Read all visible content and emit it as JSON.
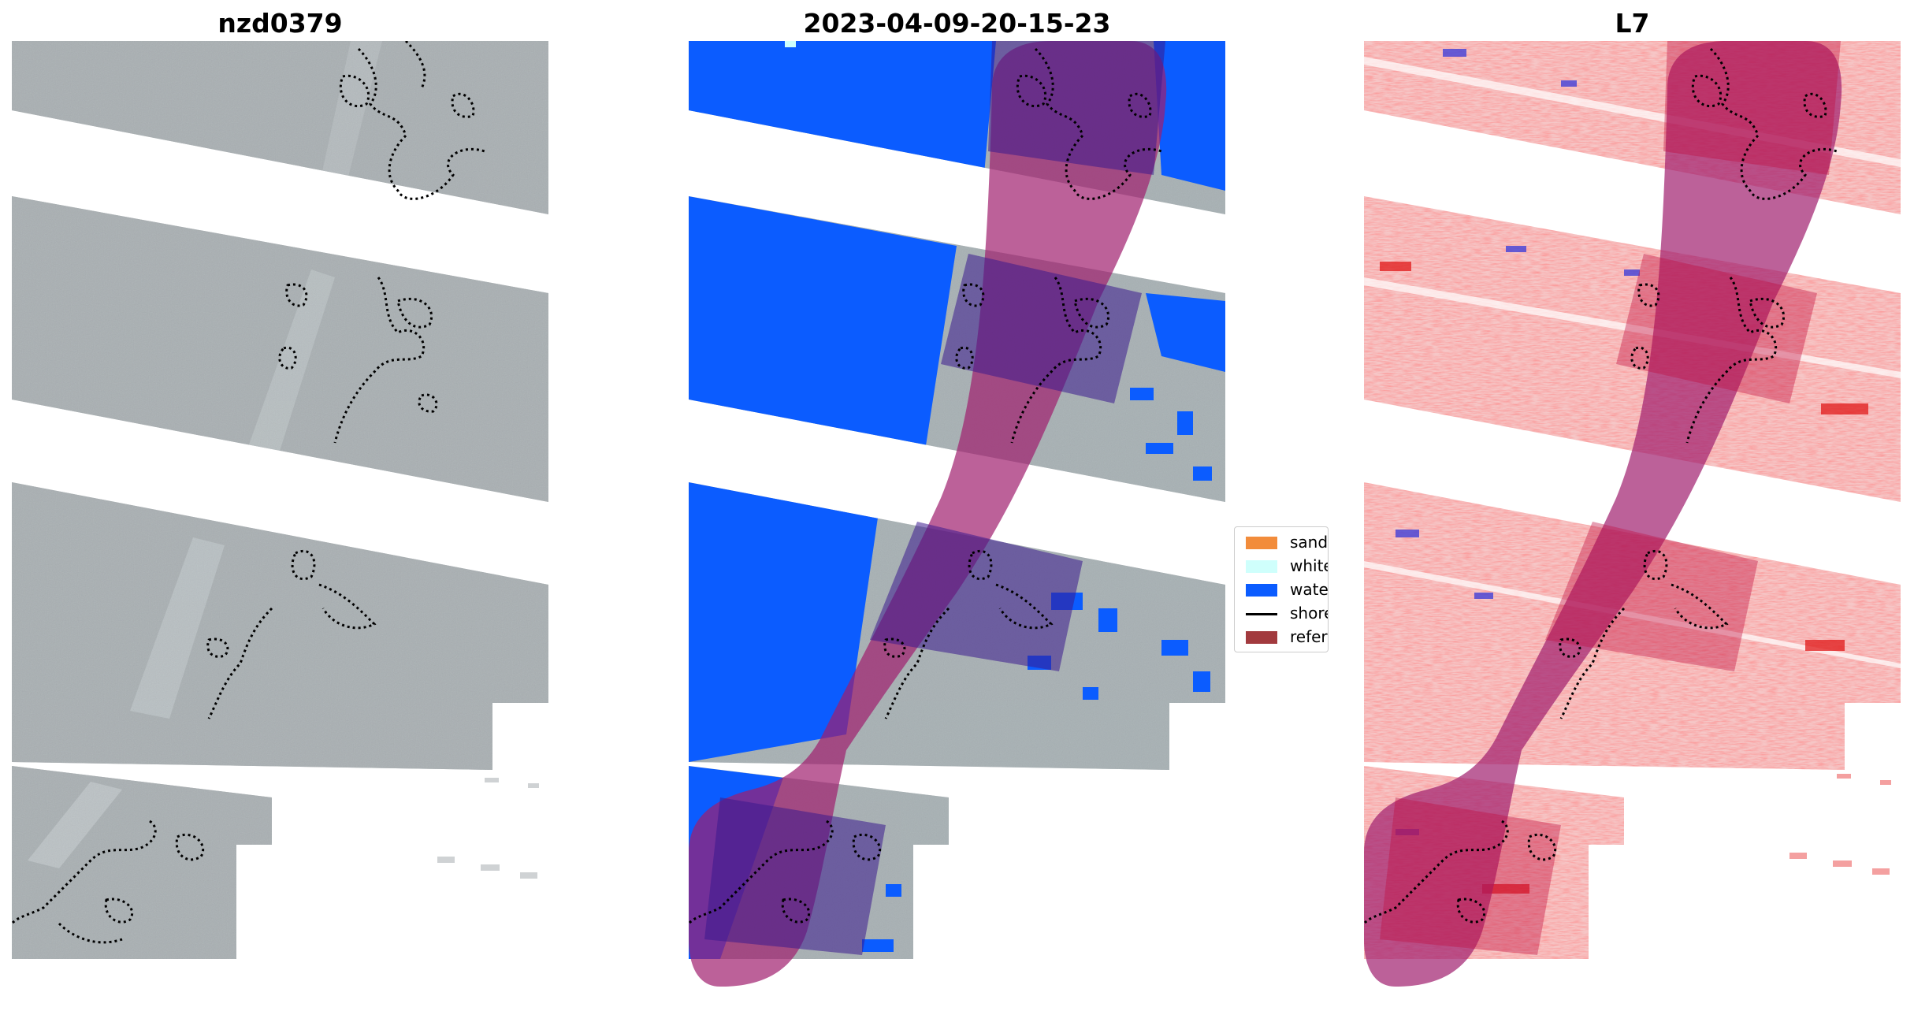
{
  "titles": {
    "image": "nzd0379",
    "classification": "2023-04-09-20-15-23",
    "index": "L7"
  },
  "legend": {
    "items": [
      {
        "label": "sand",
        "color": "#f28c3b",
        "kind": "patch"
      },
      {
        "label": "whitewat",
        "color": "#cffffc",
        "kind": "patch"
      },
      {
        "label": "water",
        "color": "#0b5cff",
        "kind": "patch"
      },
      {
        "label": "shoreline",
        "color": "#000000",
        "kind": "line"
      },
      {
        "label": "reference",
        "color": "#a23a3e",
        "kind": "patch"
      }
    ]
  },
  "colors": {
    "sand": "#f28c3b",
    "whitewater": "#cffffc",
    "water": "#0b5cff",
    "shoreline": "#000000",
    "reference": "#a23a3e",
    "buffer_overlay": "#a01e6e",
    "imagery_base": "#a8b0b4",
    "index_colormap": "bwr"
  }
}
